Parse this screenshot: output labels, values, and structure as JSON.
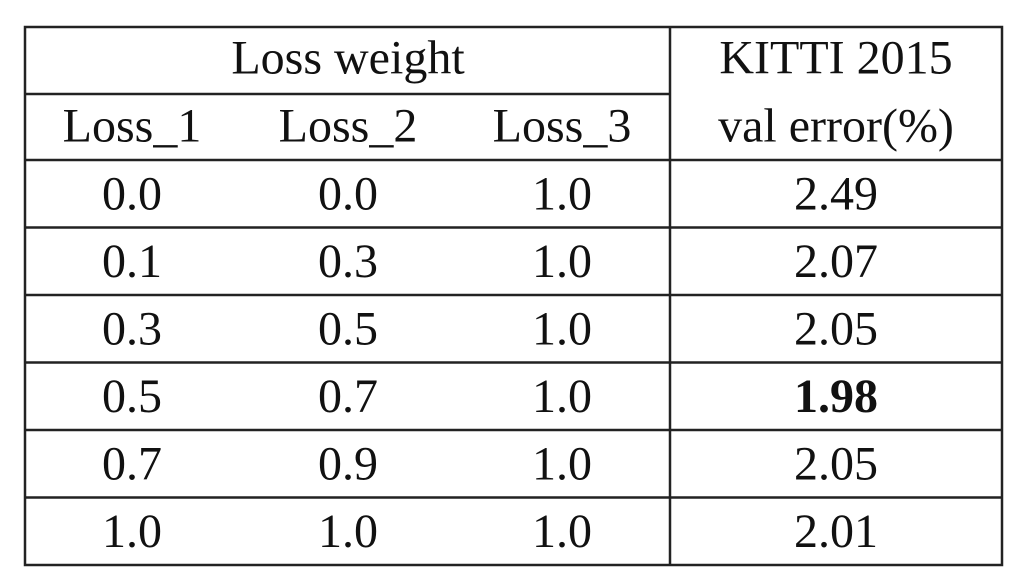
{
  "table": {
    "header": {
      "group": "Loss weight",
      "metric_line1": "KITTI 2015",
      "metric_line2": "val error(%)",
      "columns": [
        "Loss_1",
        "Loss_2",
        "Loss_3"
      ]
    },
    "rows": [
      [
        "0.0",
        "0.0",
        "1.0",
        "2.49"
      ],
      [
        "0.1",
        "0.3",
        "1.0",
        "2.07"
      ],
      [
        "0.3",
        "0.5",
        "1.0",
        "2.05"
      ],
      [
        "0.5",
        "0.7",
        "1.0",
        "1.98"
      ],
      [
        "0.7",
        "0.9",
        "1.0",
        "2.05"
      ],
      [
        "1.0",
        "1.0",
        "1.0",
        "2.01"
      ]
    ]
  }
}
